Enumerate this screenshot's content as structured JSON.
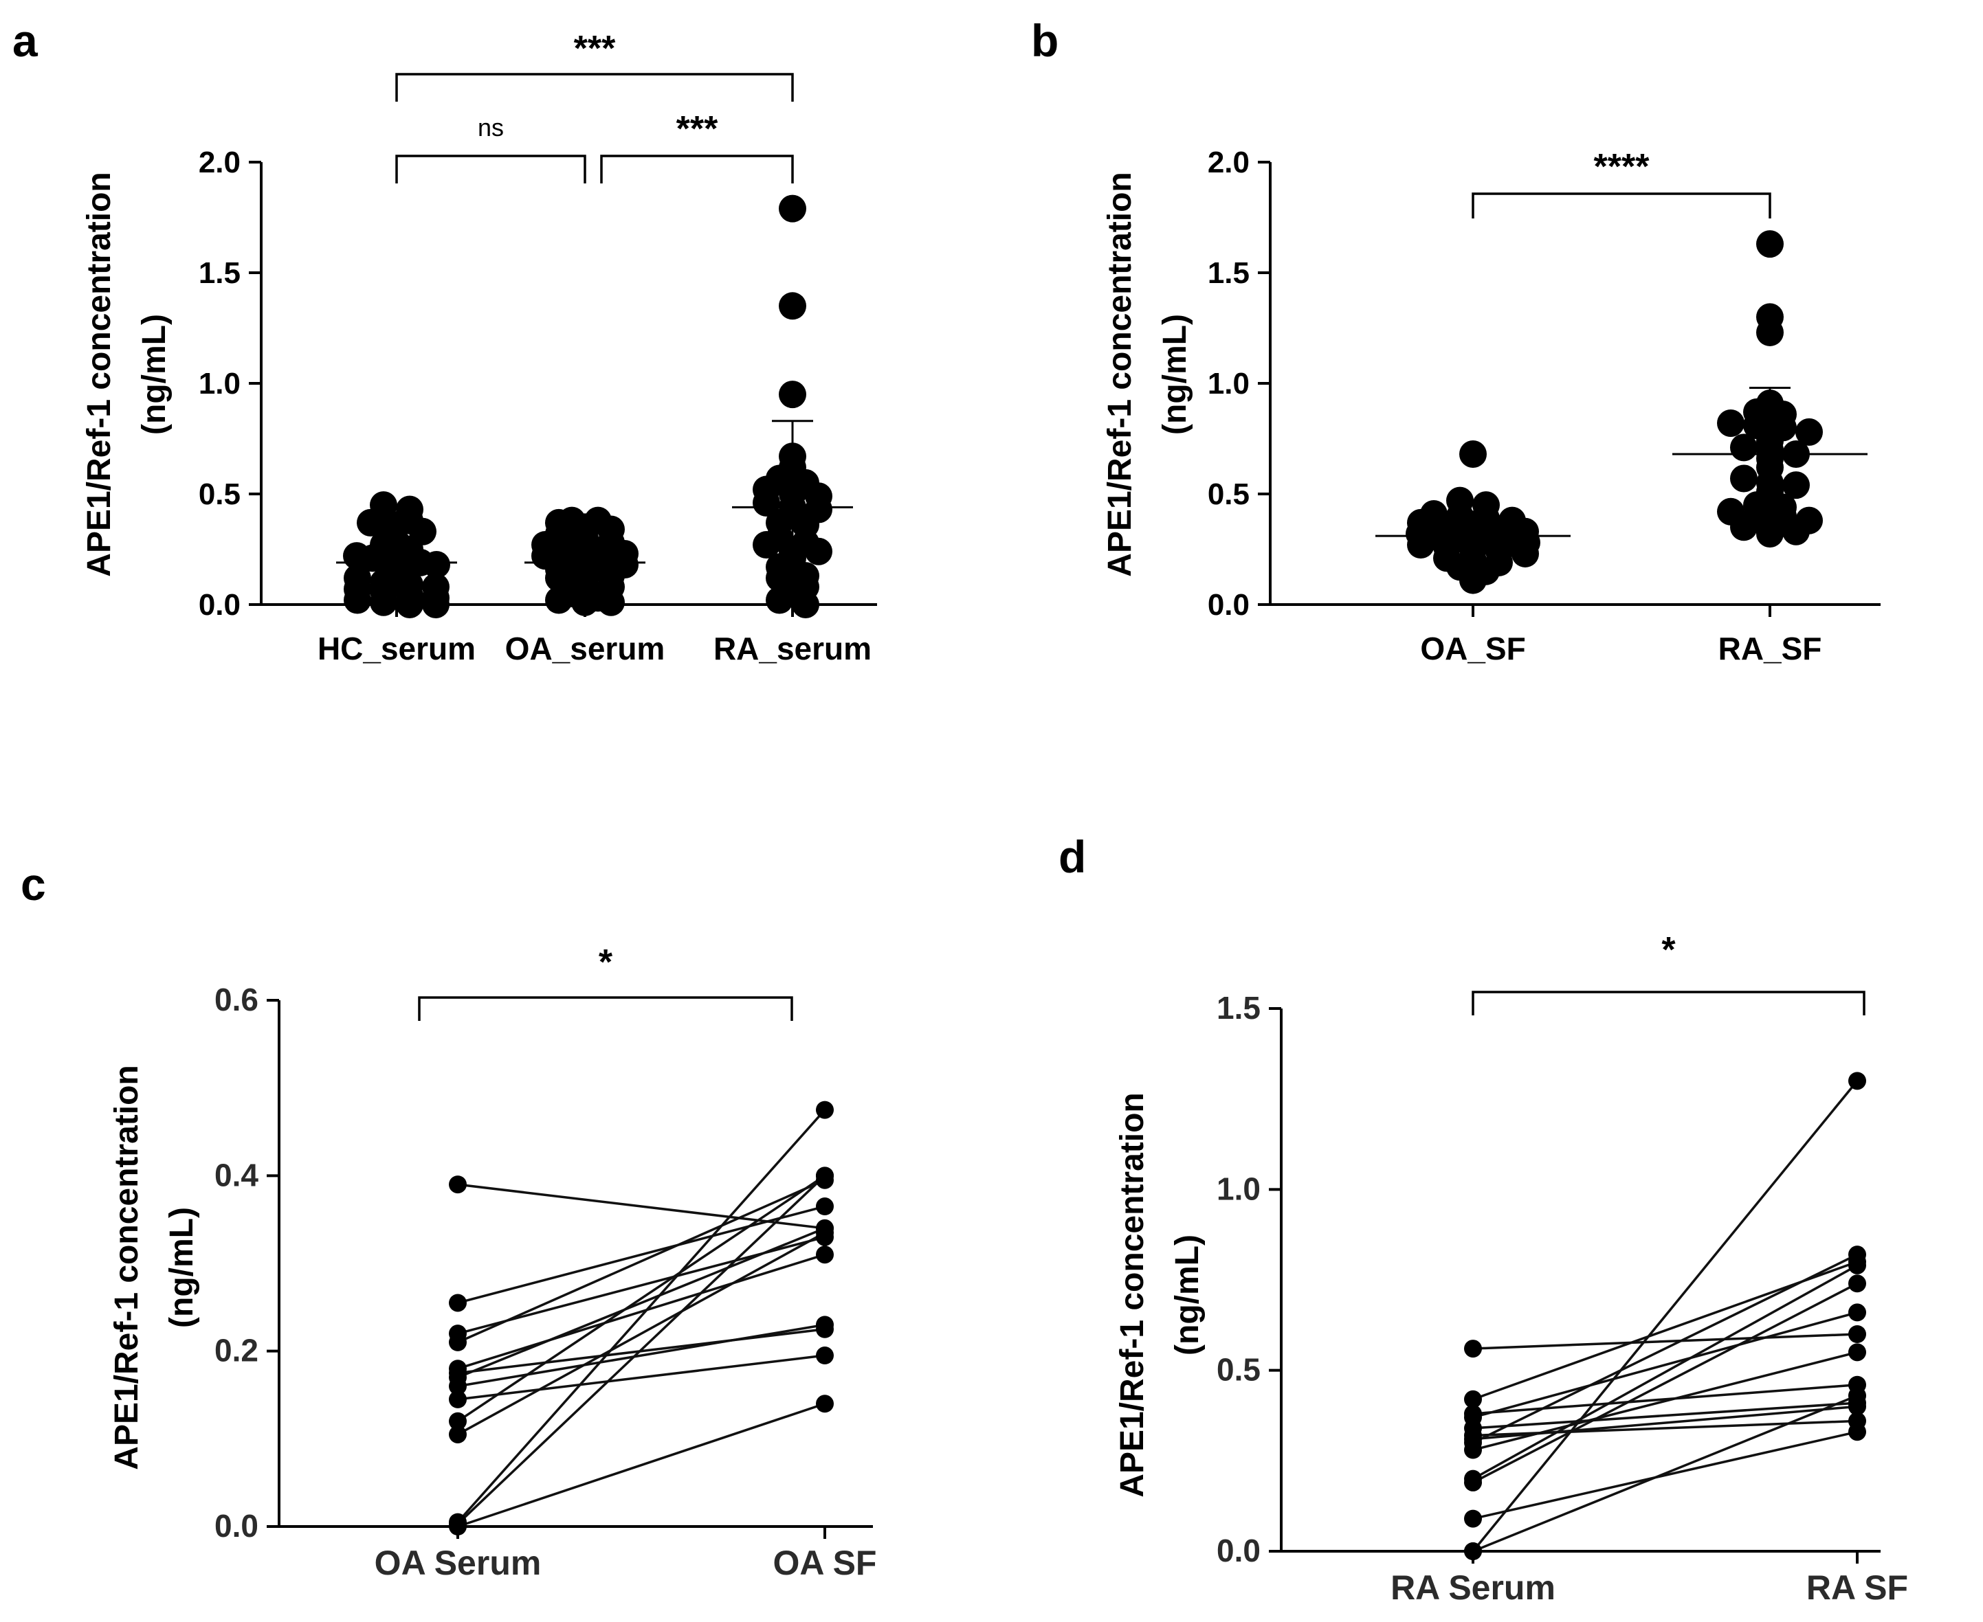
{
  "chart_data": [
    {
      "panel": "a",
      "type": "scatter",
      "ylabel_line1": "APE1/Ref-1 concentration",
      "ylabel_line2": "(ng/mL)",
      "ylim": [
        0,
        2.0
      ],
      "yticks": [
        "0.0",
        "0.5",
        "1.0",
        "1.5",
        "2.0"
      ],
      "categories": [
        "HC_serum",
        "OA_serum",
        "RA_serum"
      ],
      "series": [
        {
          "name": "HC_serum",
          "mean": 0.19,
          "sd_low": 0.04,
          "sd_high": 0.33,
          "values": [
            0.45,
            0.43,
            0.38,
            0.38,
            0.37,
            0.36,
            0.33,
            0.28,
            0.27,
            0.25,
            0.22,
            0.21,
            0.2,
            0.2,
            0.19,
            0.18,
            0.15,
            0.12,
            0.1,
            0.09,
            0.08,
            0.07,
            0.06,
            0.04,
            0.03,
            0.02,
            0.01,
            0.0,
            0.0
          ]
        },
        {
          "name": "OA_serum",
          "mean": 0.19,
          "sd_low": 0.07,
          "sd_high": 0.3,
          "values": [
            0.38,
            0.38,
            0.37,
            0.35,
            0.34,
            0.32,
            0.3,
            0.28,
            0.27,
            0.27,
            0.26,
            0.24,
            0.23,
            0.22,
            0.21,
            0.21,
            0.2,
            0.19,
            0.18,
            0.16,
            0.14,
            0.13,
            0.12,
            0.1,
            0.08,
            0.05,
            0.03,
            0.02,
            0.01,
            0.01
          ]
        },
        {
          "name": "RA_serum",
          "mean": 0.44,
          "sd_low": 0.05,
          "sd_high": 0.83,
          "values": [
            1.79,
            1.35,
            0.95,
            0.67,
            0.62,
            0.57,
            0.55,
            0.52,
            0.5,
            0.49,
            0.46,
            0.44,
            0.43,
            0.42,
            0.37,
            0.36,
            0.3,
            0.28,
            0.27,
            0.24,
            0.24,
            0.21,
            0.17,
            0.13,
            0.12,
            0.08,
            0.07,
            0.02,
            0.0
          ]
        }
      ],
      "annotations": [
        {
          "from": "HC_serum",
          "to": "OA_serum",
          "text": "ns"
        },
        {
          "from": "OA_serum",
          "to": "RA_serum",
          "text": "***"
        },
        {
          "from": "HC_serum",
          "to": "RA_serum",
          "text": "***"
        }
      ]
    },
    {
      "panel": "b",
      "type": "scatter",
      "ylabel_line1": "APE1/Ref-1 concentration",
      "ylabel_line2": "(ng/mL)",
      "ylim": [
        0,
        2.0
      ],
      "yticks": [
        "0.0",
        "0.5",
        "1.0",
        "1.5",
        "2.0"
      ],
      "categories": [
        "OA_SF",
        "RA_SF"
      ],
      "series": [
        {
          "name": "OA_SF",
          "mean": 0.31,
          "sd_low": 0.2,
          "sd_high": 0.42,
          "values": [
            0.68,
            0.47,
            0.45,
            0.41,
            0.4,
            0.39,
            0.38,
            0.37,
            0.36,
            0.35,
            0.34,
            0.33,
            0.32,
            0.32,
            0.31,
            0.3,
            0.29,
            0.29,
            0.28,
            0.27,
            0.26,
            0.25,
            0.24,
            0.23,
            0.21,
            0.2,
            0.19,
            0.17,
            0.15,
            0.11
          ]
        },
        {
          "name": "RA_SF",
          "mean": 0.68,
          "sd_low": 0.38,
          "sd_high": 0.98,
          "values": [
            1.63,
            1.3,
            1.23,
            0.91,
            0.87,
            0.86,
            0.82,
            0.81,
            0.8,
            0.78,
            0.74,
            0.71,
            0.7,
            0.68,
            0.66,
            0.62,
            0.57,
            0.55,
            0.54,
            0.51,
            0.45,
            0.44,
            0.42,
            0.4,
            0.4,
            0.38,
            0.35,
            0.33,
            0.33,
            0.32
          ]
        }
      ],
      "annotations": [
        {
          "from": "OA_SF",
          "to": "RA_SF",
          "text": "****"
        }
      ]
    },
    {
      "panel": "c",
      "type": "line",
      "ylabel_line1": "APE1/Ref-1 concentration",
      "ylabel_line2": "(ng/mL)",
      "ylim": [
        0,
        0.6
      ],
      "yticks": [
        "0.0",
        "0.2",
        "0.4",
        "0.6"
      ],
      "categories": [
        "OA Serum",
        "OA SF"
      ],
      "pairs": [
        [
          0.39,
          0.34
        ],
        [
          0.255,
          0.365
        ],
        [
          0.22,
          0.33
        ],
        [
          0.21,
          0.395
        ],
        [
          0.18,
          0.31
        ],
        [
          0.175,
          0.225
        ],
        [
          0.17,
          0.34
        ],
        [
          0.16,
          0.23
        ],
        [
          0.145,
          0.195
        ],
        [
          0.12,
          0.4
        ],
        [
          0.105,
          0.335
        ],
        [
          0.005,
          0.475
        ],
        [
          0.003,
          0.4
        ],
        [
          0.0,
          0.14
        ]
      ],
      "annotations": [
        {
          "from": "OA Serum",
          "to": "OA SF",
          "text": "*"
        }
      ]
    },
    {
      "panel": "d",
      "type": "line",
      "ylabel_line1": "APE1/Ref-1 concentration",
      "ylabel_line2": "(ng/mL)",
      "ylim": [
        0,
        1.5
      ],
      "yticks": [
        "0.0",
        "0.5",
        "1.0",
        "1.5"
      ],
      "categories": [
        "RA Serum",
        "RA SF"
      ],
      "pairs": [
        [
          0.56,
          0.6
        ],
        [
          0.42,
          0.8
        ],
        [
          0.38,
          0.46
        ],
        [
          0.37,
          0.66
        ],
        [
          0.34,
          0.41
        ],
        [
          0.32,
          0.36
        ],
        [
          0.31,
          0.4
        ],
        [
          0.3,
          0.82
        ],
        [
          0.28,
          0.55
        ],
        [
          0.2,
          0.79
        ],
        [
          0.19,
          0.74
        ],
        [
          0.09,
          0.33
        ],
        [
          0.0,
          1.3
        ],
        [
          0.0,
          0.43
        ]
      ],
      "annotations": [
        {
          "from": "RA Serum",
          "to": "RA SF",
          "text": "*"
        }
      ]
    }
  ]
}
